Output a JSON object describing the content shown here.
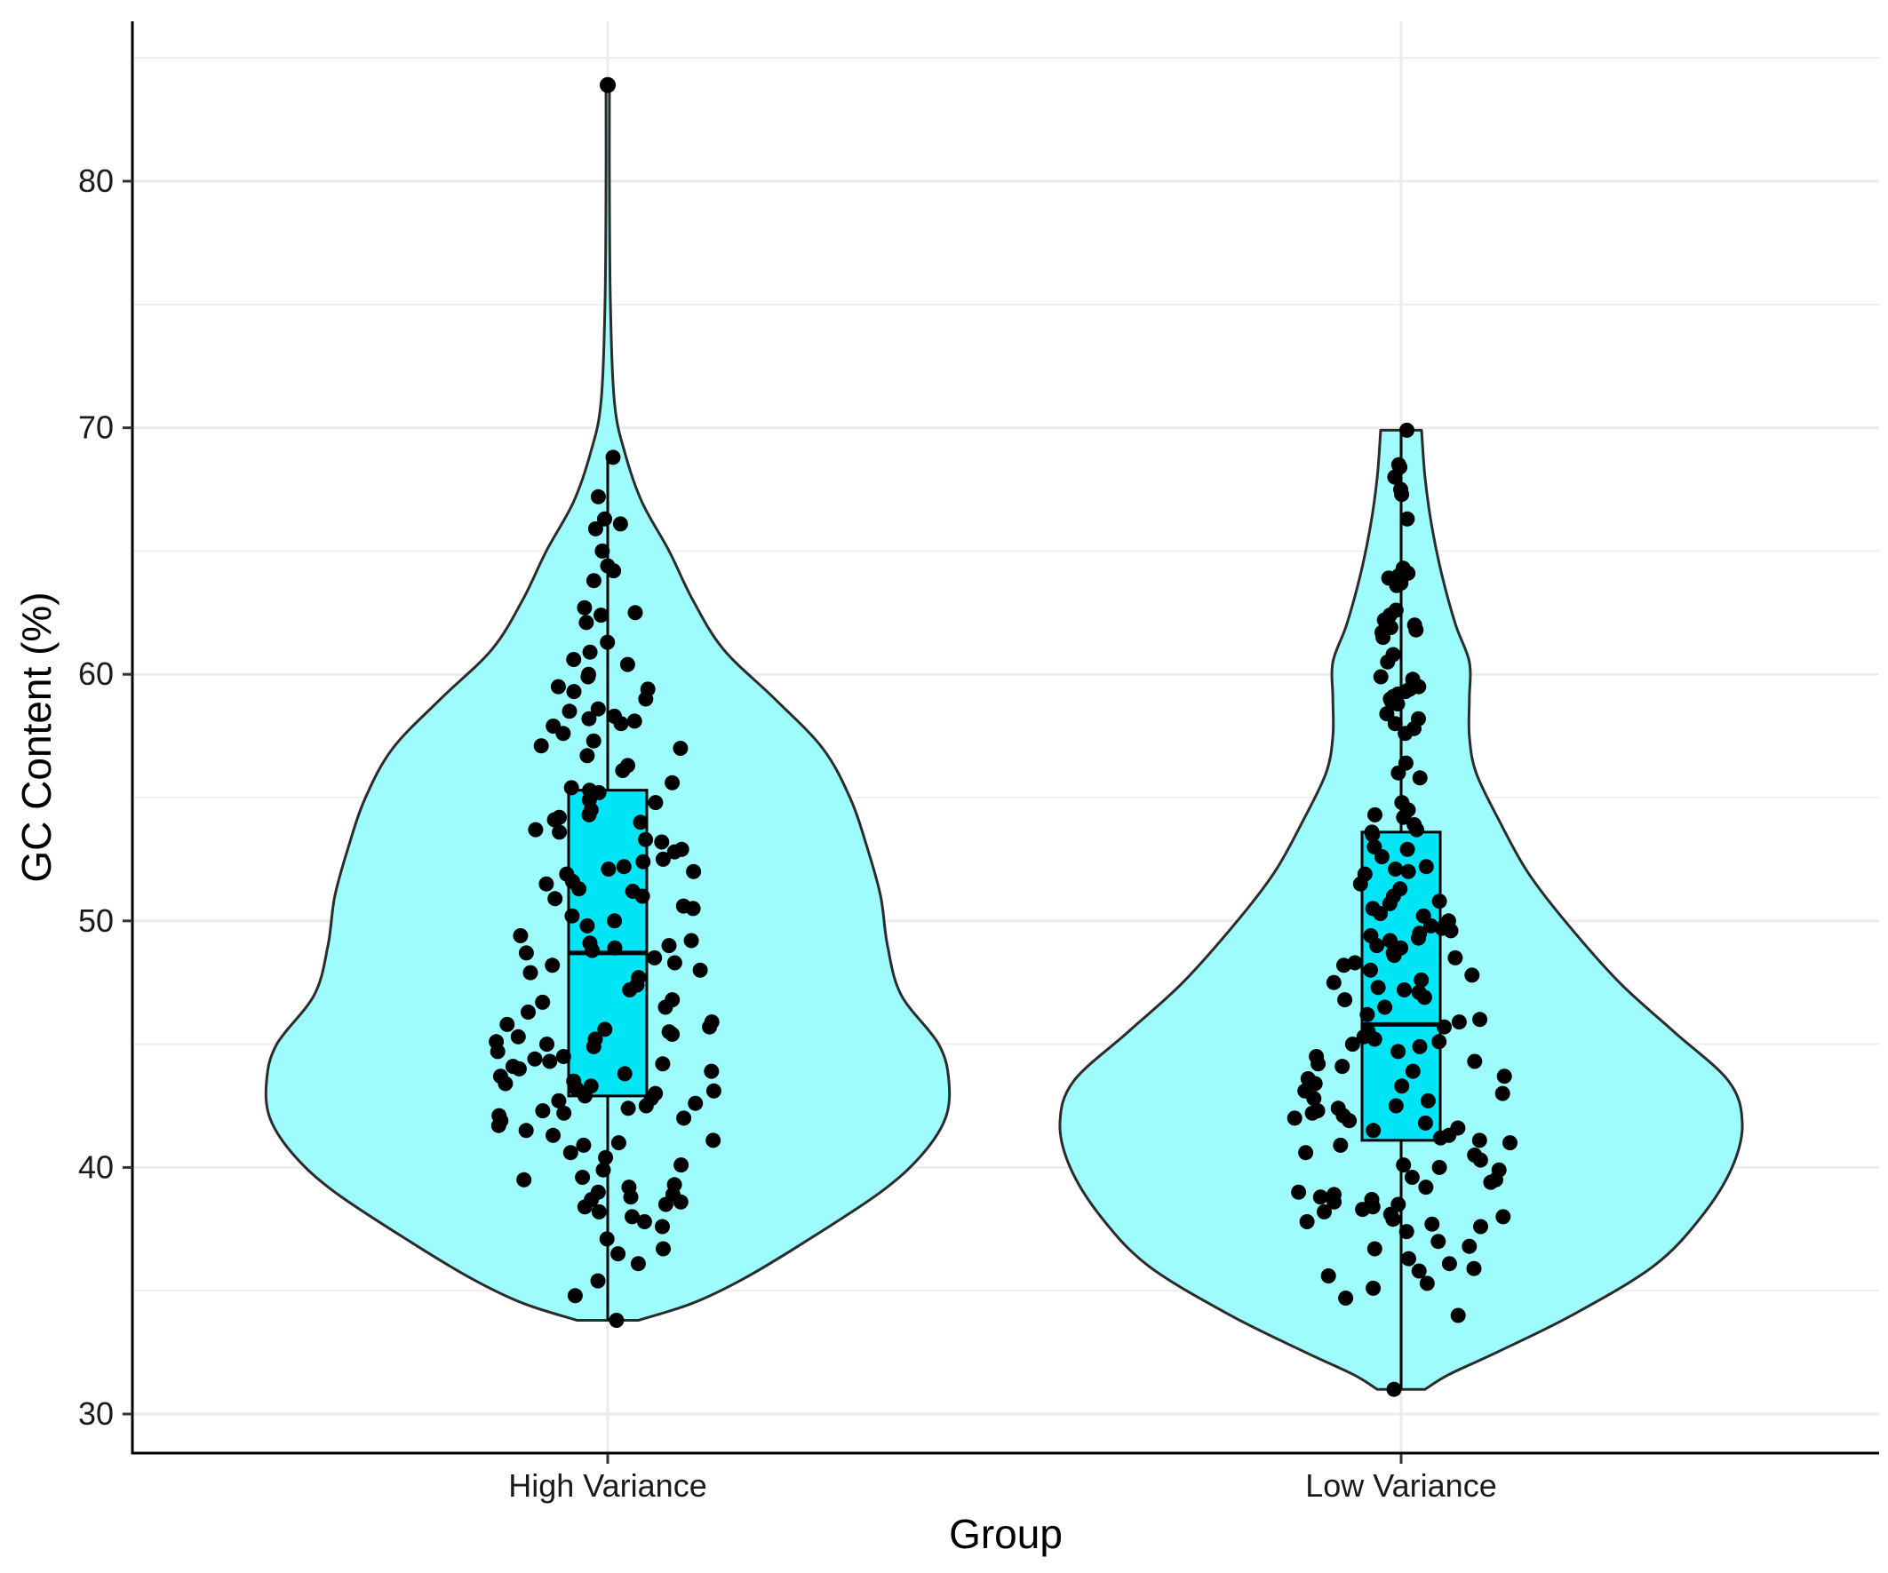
{
  "chart_data": {
    "type": "violin",
    "title": "",
    "xlabel": "Group",
    "ylabel": "GC Content (%)",
    "ylim": [
      29.4,
      84.5
    ],
    "y_ticks": [
      30,
      40,
      50,
      60,
      70,
      80
    ],
    "y_tick_labels": [
      "30",
      "40",
      "50",
      "60",
      "70",
      "80"
    ],
    "categories": [
      "High Variance",
      "Low Variance"
    ],
    "grid": true,
    "legend": "none",
    "colors": {
      "violin_fill": "#9ffcfc",
      "box_fill": "#00e5f6",
      "outline": "#2b2b2b",
      "point": "#000000",
      "grid": "#ebebeb"
    },
    "series": [
      {
        "category": "High Variance",
        "box": {
          "whisker_low": 33.8,
          "q1": 42.9,
          "median": 48.7,
          "q3": 55.3,
          "whisker_high": 68.8
        },
        "outliers": [
          83.9
        ],
        "density": [
          [
            33.8,
            0.09
          ],
          [
            34.5,
            0.25
          ],
          [
            35.5,
            0.4
          ],
          [
            37,
            0.58
          ],
          [
            39,
            0.8
          ],
          [
            40.5,
            0.92
          ],
          [
            42,
            0.99
          ],
          [
            43.5,
            1.0
          ],
          [
            45,
            0.97
          ],
          [
            47,
            0.86
          ],
          [
            49,
            0.82
          ],
          [
            51,
            0.8
          ],
          [
            53,
            0.76
          ],
          [
            55,
            0.71
          ],
          [
            57,
            0.63
          ],
          [
            59,
            0.49
          ],
          [
            61,
            0.34
          ],
          [
            63,
            0.25
          ],
          [
            65,
            0.18
          ],
          [
            67,
            0.1
          ],
          [
            69,
            0.05
          ],
          [
            71,
            0.02
          ],
          [
            75,
            0.008
          ],
          [
            80,
            0.005
          ],
          [
            83.9,
            0.005
          ]
        ],
        "points": [
          83.9,
          68.8,
          67.2,
          66.3,
          66.1,
          65.9,
          65.0,
          64.4,
          64.2,
          63.8,
          62.7,
          62.5,
          62.4,
          62.1,
          61.3,
          60.9,
          60.6,
          60.4,
          60.0,
          59.9,
          59.5,
          59.4,
          59.3,
          59.0,
          58.6,
          58.5,
          58.3,
          58.2,
          58.1,
          58.0,
          57.9,
          57.6,
          57.3,
          57.1,
          57.0,
          56.7,
          56.3,
          56.1,
          55.6,
          55.4,
          55.3,
          55.2,
          54.9,
          54.8,
          54.5,
          54.3,
          54.2,
          54.1,
          54.0,
          53.7,
          53.6,
          53.3,
          53.2,
          52.9,
          52.8,
          52.5,
          52.4,
          52.2,
          52.1,
          52.0,
          51.9,
          51.6,
          51.5,
          51.3,
          51.2,
          51.0,
          50.9,
          50.6,
          50.5,
          50.2,
          50.0,
          49.8,
          49.4,
          49.2,
          49.1,
          49.0,
          48.9,
          48.8,
          48.7,
          48.5,
          48.3,
          48.2,
          48.0,
          47.9,
          47.7,
          47.4,
          47.2,
          46.8,
          46.7,
          46.5,
          46.3,
          45.9,
          45.8,
          45.7,
          45.6,
          45.5,
          45.4,
          45.3,
          45.2,
          45.1,
          45.0,
          44.9,
          44.7,
          44.5,
          44.4,
          44.3,
          44.2,
          44.1,
          44.0,
          43.9,
          43.8,
          43.7,
          43.5,
          43.4,
          43.3,
          43.2,
          43.1,
          43.0,
          42.9,
          42.8,
          42.7,
          42.6,
          42.5,
          42.4,
          42.3,
          42.2,
          42.1,
          42.0,
          41.9,
          41.7,
          41.5,
          41.3,
          41.1,
          41.0,
          40.9,
          40.6,
          40.4,
          40.1,
          39.9,
          39.6,
          39.5,
          39.3,
          39.2,
          39.0,
          38.9,
          38.8,
          38.7,
          38.6,
          38.5,
          38.4,
          38.2,
          38.0,
          37.8,
          37.6,
          37.1,
          36.7,
          36.5,
          36.1,
          35.4,
          34.8,
          33.8
        ]
      },
      {
        "category": "Low Variance",
        "box": {
          "whisker_low": 31.0,
          "q1": 41.1,
          "median": 45.8,
          "q3": 53.6,
          "whisker_high": 69.9
        },
        "outliers": [],
        "density": [
          [
            31,
            0.07
          ],
          [
            31.6,
            0.14
          ],
          [
            32.5,
            0.28
          ],
          [
            34,
            0.5
          ],
          [
            36,
            0.74
          ],
          [
            38,
            0.88
          ],
          [
            40,
            0.97
          ],
          [
            41.8,
            1.0
          ],
          [
            43.5,
            0.96
          ],
          [
            45.5,
            0.8
          ],
          [
            47.5,
            0.64
          ],
          [
            50,
            0.48
          ],
          [
            52,
            0.37
          ],
          [
            54,
            0.29
          ],
          [
            56,
            0.22
          ],
          [
            57.5,
            0.2
          ],
          [
            59,
            0.2
          ],
          [
            60.5,
            0.2
          ],
          [
            62,
            0.16
          ],
          [
            64,
            0.12
          ],
          [
            66,
            0.09
          ],
          [
            68,
            0.07
          ],
          [
            69.9,
            0.06
          ]
        ],
        "points": [
          69.9,
          68.5,
          68.4,
          68.0,
          67.5,
          67.3,
          66.3,
          64.3,
          64.1,
          64.0,
          63.9,
          63.7,
          63.6,
          62.6,
          62.4,
          62.2,
          62.0,
          61.9,
          61.8,
          61.7,
          61.5,
          60.8,
          60.5,
          59.9,
          59.8,
          59.5,
          59.4,
          59.3,
          59.2,
          59.1,
          59.0,
          58.9,
          58.8,
          58.4,
          58.2,
          58.0,
          57.8,
          57.6,
          56.4,
          56.0,
          55.8,
          54.8,
          54.5,
          54.3,
          54.2,
          53.9,
          53.7,
          53.6,
          53.5,
          53.0,
          52.9,
          52.6,
          52.2,
          52.1,
          52.0,
          51.9,
          51.5,
          51.3,
          51.0,
          50.8,
          50.7,
          50.5,
          50.3,
          50.2,
          50.0,
          49.8,
          49.7,
          49.6,
          49.5,
          49.4,
          49.3,
          49.2,
          49.0,
          48.9,
          48.7,
          48.6,
          48.5,
          48.3,
          48.2,
          48.0,
          47.8,
          47.6,
          47.5,
          47.3,
          47.2,
          47.1,
          46.9,
          46.8,
          46.5,
          46.2,
          46.0,
          45.9,
          45.7,
          45.5,
          45.3,
          45.2,
          45.1,
          45.0,
          44.9,
          44.7,
          44.5,
          44.3,
          44.2,
          44.1,
          43.9,
          43.7,
          43.6,
          43.4,
          43.3,
          43.1,
          43.0,
          42.8,
          42.7,
          42.5,
          42.4,
          42.3,
          42.2,
          42.1,
          42.0,
          41.9,
          41.8,
          41.6,
          41.5,
          41.3,
          41.2,
          41.1,
          41.0,
          40.9,
          40.6,
          40.5,
          40.3,
          40.1,
          40.0,
          39.9,
          39.6,
          39.5,
          39.4,
          39.2,
          39.0,
          38.9,
          38.8,
          38.7,
          38.6,
          38.5,
          38.4,
          38.3,
          38.2,
          38.1,
          38.0,
          37.9,
          37.8,
          37.7,
          37.6,
          37.4,
          37.0,
          36.8,
          36.7,
          36.3,
          36.1,
          35.9,
          35.8,
          35.6,
          35.3,
          35.1,
          34.7,
          34.0,
          31.0
        ]
      }
    ]
  }
}
